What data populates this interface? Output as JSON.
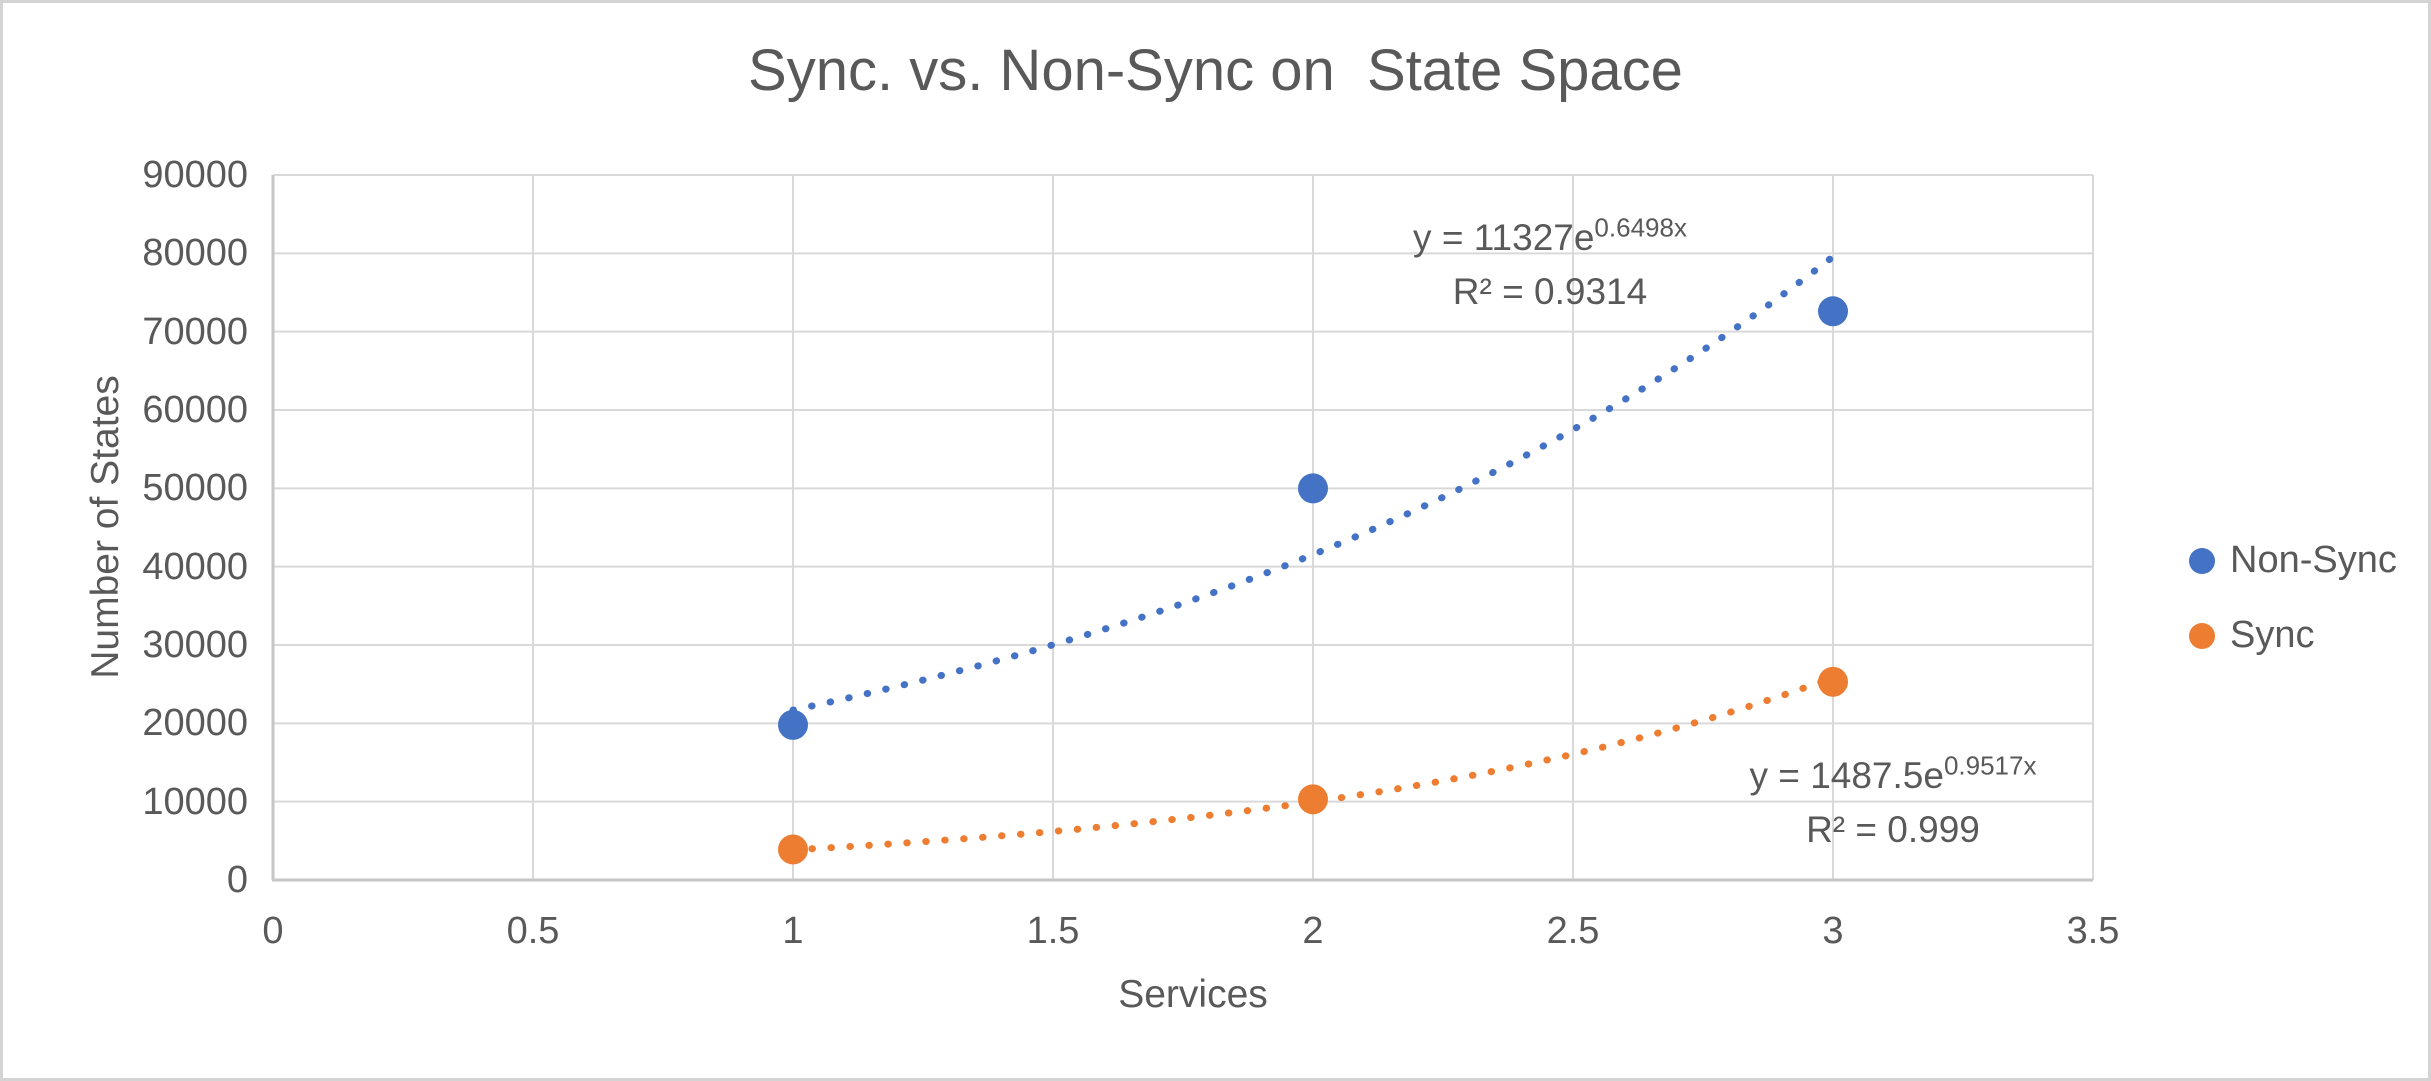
{
  "chart": {
    "title": "Sync. vs. Non-Sync on  State Space",
    "x_axis_title": "Services",
    "y_axis_title": "Number of States"
  },
  "legend": {
    "items": [
      {
        "label": "Non-Sync",
        "color": "#4472C4"
      },
      {
        "label": "Sync",
        "color": "#ED7D31"
      }
    ]
  },
  "annotations": {
    "non_sync": {
      "equation_prefix": "y = 11327e",
      "equation_exponent": "0.6498x",
      "r_squared": "R² = 0.9314"
    },
    "sync": {
      "equation_prefix": "y = 1487.5e",
      "equation_exponent": "0.9517x",
      "r_squared": "R² = 0.999"
    }
  },
  "chart_data": {
    "type": "scatter",
    "title": "Sync. vs. Non-Sync on  State Space",
    "xlabel": "Services",
    "ylabel": "Number of States",
    "xlim": [
      0,
      3.5
    ],
    "ylim": [
      0,
      90000
    ],
    "x_ticks": [
      0,
      0.5,
      1,
      1.5,
      2,
      2.5,
      3,
      3.5
    ],
    "x_tick_labels": [
      "0",
      "0.5",
      "1",
      "1.5",
      "2",
      "2.5",
      "3",
      "3.5"
    ],
    "y_ticks": [
      0,
      10000,
      20000,
      30000,
      40000,
      50000,
      60000,
      70000,
      80000,
      90000
    ],
    "y_tick_labels": [
      "0",
      "10000",
      "20000",
      "30000",
      "40000",
      "50000",
      "60000",
      "70000",
      "80000",
      "90000"
    ],
    "grid": true,
    "legend_position": "right",
    "colors": {
      "grid": "#D9D9D9",
      "axis": "#C6C6C6",
      "text": "#595959"
    },
    "series": [
      {
        "name": "Non-Sync",
        "color": "#4472C4",
        "marker": "circle",
        "x": [
          1,
          2,
          3
        ],
        "y": [
          19800,
          50000,
          72600
        ],
        "trendline": {
          "type": "exponential",
          "a": 11327,
          "b": 0.6498,
          "r2": 0.9314,
          "x_range": [
            1,
            3
          ],
          "style": "dotted",
          "label": "y = 11327e^(0.6498x)"
        }
      },
      {
        "name": "Sync",
        "color": "#ED7D31",
        "marker": "circle",
        "x": [
          1,
          2,
          3
        ],
        "y": [
          3900,
          10300,
          25300
        ],
        "trendline": {
          "type": "exponential",
          "a": 1487.5,
          "b": 0.9517,
          "r2": 0.999,
          "x_range": [
            1,
            3
          ],
          "style": "dotted",
          "label": "y = 1487.5e^(0.9517x)"
        }
      }
    ]
  }
}
